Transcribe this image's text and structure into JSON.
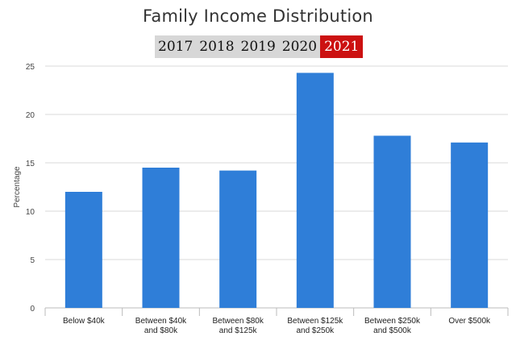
{
  "title": "Family Income Distribution",
  "year_tabs": [
    {
      "label": "2017",
      "active": false
    },
    {
      "label": "2018",
      "active": false
    },
    {
      "label": "2019",
      "active": false
    },
    {
      "label": "2020",
      "active": false
    },
    {
      "label": "2021",
      "active": true
    }
  ],
  "colors": {
    "bar": "#2f7ed8",
    "active_tab": "#cc1111",
    "tab_bg": "#d7d7d7",
    "grid": "#d8d8d8"
  },
  "chart_data": {
    "type": "bar",
    "title": "Family Income Distribution",
    "ylabel": "Percentage",
    "xlabel": "",
    "ylim": [
      0,
      25
    ],
    "yticks": [
      0,
      5,
      10,
      15,
      20,
      25
    ],
    "grid": true,
    "categories": [
      "Below $40k",
      "Between $40k and $80k",
      "Between $80k and $125k",
      "Between $125k and $250k",
      "Between $250k and $500k",
      "Over $500k"
    ],
    "category_lines": [
      [
        "Below $40k"
      ],
      [
        "Between $40k",
        "and $80k"
      ],
      [
        "Between $80k",
        "and $125k"
      ],
      [
        "Between $125k",
        "and $250k"
      ],
      [
        "Between $250k",
        "and $500k"
      ],
      [
        "Over $500k"
      ]
    ],
    "values": [
      12.0,
      14.5,
      14.2,
      24.3,
      17.8,
      17.1
    ]
  }
}
